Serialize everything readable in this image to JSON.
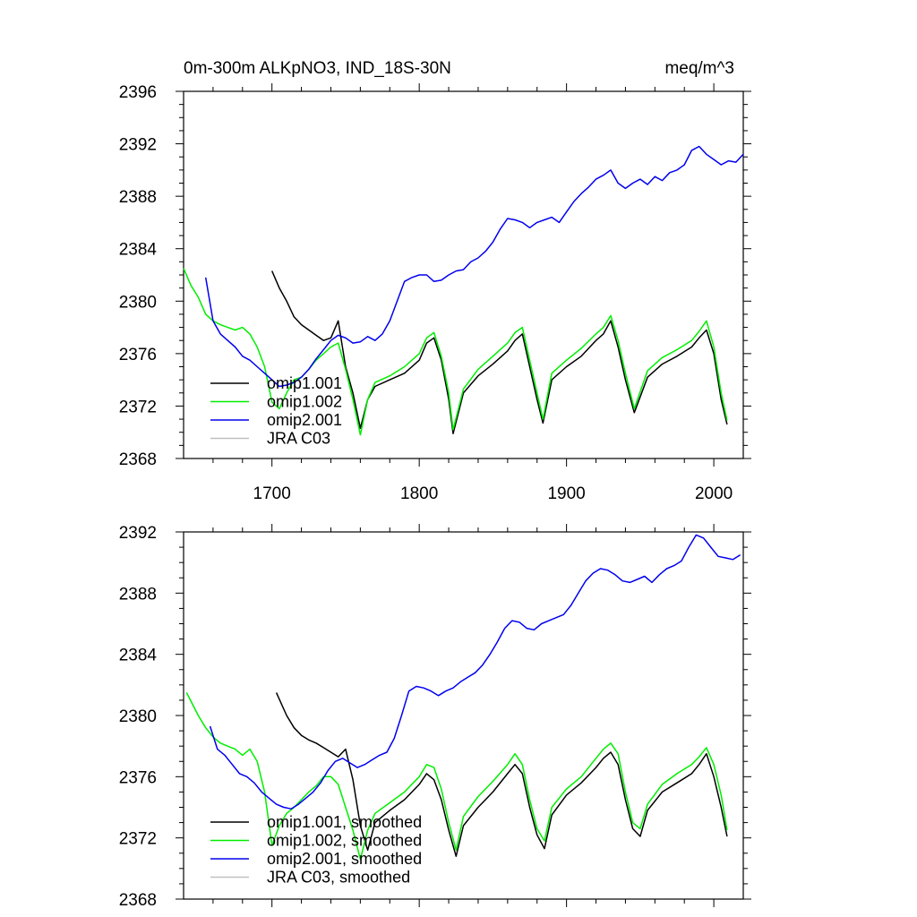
{
  "chart_data": [
    {
      "type": "line",
      "title_left": "0m-300m ALKpNO3, IND_18S-30N",
      "title_right": "meq/m^3",
      "xlim": [
        1640,
        2020
      ],
      "ylim": [
        2368,
        2396
      ],
      "x_ticks": [
        1700,
        1800,
        1900,
        2000
      ],
      "y_ticks": [
        2368,
        2372,
        2376,
        2380,
        2384,
        2388,
        2392,
        2396
      ],
      "y_tick_labels": [
        "2368",
        "2372",
        "2376",
        "2380",
        "2384",
        "2388",
        "2392",
        "2396"
      ],
      "x_tick_labels": [
        "1700",
        "1800",
        "1900",
        "2000"
      ],
      "legend": [
        "omip1.001",
        "omip1.002",
        "omip2.001",
        "JRA C03"
      ],
      "legend_position": "bottom-left",
      "series": [
        {
          "name": "omip1.001",
          "color": "#000000",
          "x": [
            1700,
            1705,
            1710,
            1715,
            1720,
            1725,
            1730,
            1735,
            1740,
            1745,
            1750,
            1755,
            1760,
            1765,
            1770,
            1780,
            1790,
            1800,
            1805,
            1810,
            1815,
            1820,
            1823,
            1830,
            1840,
            1850,
            1860,
            1865,
            1870,
            1875,
            1880,
            1884,
            1890,
            1900,
            1910,
            1920,
            1925,
            1930,
            1935,
            1940,
            1946,
            1955,
            1965,
            1975,
            1985,
            1990,
            1995,
            2000,
            2005,
            2009
          ],
          "y": [
            2382.3,
            2381.0,
            2380.0,
            2378.8,
            2378.2,
            2377.8,
            2377.4,
            2377.0,
            2377.2,
            2378.5,
            2375.0,
            2373.0,
            2370.3,
            2372.5,
            2373.5,
            2374.0,
            2374.5,
            2375.5,
            2376.8,
            2377.2,
            2375.5,
            2372.5,
            2369.9,
            2373.0,
            2374.3,
            2375.2,
            2376.2,
            2377.0,
            2377.5,
            2375.0,
            2372.5,
            2370.7,
            2374.0,
            2375.0,
            2375.8,
            2377.0,
            2377.5,
            2378.5,
            2376.5,
            2374.0,
            2371.5,
            2374.2,
            2375.2,
            2375.8,
            2376.5,
            2377.2,
            2377.8,
            2376.0,
            2372.5,
            2370.6
          ]
        },
        {
          "name": "omip1.002",
          "color": "#00ee00",
          "x": [
            1640,
            1645,
            1650,
            1655,
            1660,
            1665,
            1670,
            1675,
            1680,
            1685,
            1690,
            1695,
            1700,
            1705,
            1710,
            1715,
            1720,
            1725,
            1730,
            1735,
            1740,
            1745,
            1750,
            1755,
            1760,
            1765,
            1770,
            1780,
            1790,
            1800,
            1805,
            1810,
            1815,
            1820,
            1823,
            1830,
            1840,
            1850,
            1860,
            1865,
            1870,
            1875,
            1880,
            1884,
            1890,
            1900,
            1910,
            1920,
            1925,
            1930,
            1935,
            1940,
            1946,
            1955,
            1965,
            1975,
            1985,
            1990,
            1995,
            2000,
            2005,
            2009
          ],
          "y": [
            2382.5,
            2381.2,
            2380.3,
            2379.0,
            2378.5,
            2378.2,
            2378.0,
            2377.8,
            2378.0,
            2377.5,
            2376.5,
            2375.0,
            2372.3,
            2371.8,
            2373.0,
            2374.0,
            2374.2,
            2374.8,
            2375.5,
            2376.0,
            2376.5,
            2376.8,
            2374.8,
            2372.5,
            2369.8,
            2372.5,
            2373.8,
            2374.3,
            2375.0,
            2376.0,
            2377.2,
            2377.6,
            2375.8,
            2373.0,
            2370.2,
            2373.3,
            2374.8,
            2375.8,
            2376.8,
            2377.6,
            2378.0,
            2375.5,
            2373.0,
            2371.0,
            2374.5,
            2375.5,
            2376.4,
            2377.5,
            2378.0,
            2378.9,
            2377.0,
            2374.5,
            2371.8,
            2374.7,
            2375.7,
            2376.3,
            2377.0,
            2377.7,
            2378.5,
            2376.5,
            2373.0,
            2370.9
          ]
        },
        {
          "name": "omip2.001",
          "color": "#0000ee",
          "x": [
            1655,
            1660,
            1665,
            1670,
            1675,
            1680,
            1685,
            1690,
            1695,
            1700,
            1705,
            1710,
            1715,
            1720,
            1725,
            1730,
            1735,
            1740,
            1745,
            1750,
            1755,
            1760,
            1765,
            1770,
            1775,
            1780,
            1785,
            1790,
            1795,
            1800,
            1805,
            1810,
            1815,
            1820,
            1825,
            1830,
            1835,
            1840,
            1845,
            1850,
            1855,
            1860,
            1865,
            1870,
            1875,
            1880,
            1885,
            1890,
            1895,
            1900,
            1905,
            1910,
            1915,
            1920,
            1925,
            1930,
            1935,
            1940,
            1945,
            1950,
            1955,
            1960,
            1965,
            1970,
            1975,
            1980,
            1985,
            1990,
            1995,
            2000,
            2005,
            2010,
            2015,
            2020
          ],
          "y": [
            2381.8,
            2378.5,
            2377.5,
            2377.0,
            2376.5,
            2375.8,
            2375.5,
            2375.0,
            2374.5,
            2374.0,
            2373.5,
            2373.6,
            2373.8,
            2374.2,
            2374.8,
            2375.6,
            2376.3,
            2377.0,
            2377.4,
            2377.2,
            2376.8,
            2376.9,
            2377.3,
            2377.0,
            2377.5,
            2378.5,
            2380.0,
            2381.5,
            2381.8,
            2382.0,
            2382.0,
            2381.5,
            2381.6,
            2382.0,
            2382.3,
            2382.4,
            2383.0,
            2383.3,
            2383.8,
            2384.5,
            2385.5,
            2386.3,
            2386.2,
            2386.0,
            2385.6,
            2386.0,
            2386.2,
            2386.4,
            2386.0,
            2386.8,
            2387.6,
            2388.2,
            2388.7,
            2389.3,
            2389.6,
            2390.0,
            2389.0,
            2388.6,
            2389.0,
            2389.3,
            2388.9,
            2389.5,
            2389.2,
            2389.8,
            2390.0,
            2390.4,
            2391.5,
            2391.8,
            2391.2,
            2390.8,
            2390.4,
            2390.7,
            2390.6,
            2391.2
          ]
        },
        {
          "name": "JRA C03",
          "color": "#c0c0c0",
          "x": [],
          "y": []
        }
      ]
    },
    {
      "type": "line",
      "xlim": [
        1640,
        2020
      ],
      "ylim": [
        2368,
        2392
      ],
      "x_ticks": [
        1700,
        1800,
        1900,
        2000
      ],
      "y_ticks": [
        2368,
        2372,
        2376,
        2380,
        2384,
        2388,
        2392
      ],
      "y_tick_labels": [
        "2368",
        "2372",
        "2376",
        "2380",
        "2384",
        "2388",
        "2392"
      ],
      "legend": [
        "omip1.001, smoothed",
        "omip1.002, smoothed",
        "omip2.001, smoothed",
        "JRA C03, smoothed"
      ],
      "legend_position": "bottom-left",
      "series": [
        {
          "name": "omip1.001, smoothed",
          "color": "#000000",
          "x": [
            1703,
            1710,
            1715,
            1720,
            1725,
            1730,
            1735,
            1740,
            1745,
            1750,
            1755,
            1760,
            1765,
            1770,
            1780,
            1790,
            1800,
            1805,
            1810,
            1815,
            1820,
            1825,
            1830,
            1840,
            1850,
            1860,
            1865,
            1870,
            1875,
            1880,
            1885,
            1890,
            1900,
            1910,
            1920,
            1925,
            1930,
            1935,
            1940,
            1945,
            1950,
            1955,
            1965,
            1975,
            1985,
            1990,
            1995,
            2000,
            2005,
            2009
          ],
          "y": [
            2381.5,
            2380.0,
            2379.2,
            2378.7,
            2378.4,
            2378.2,
            2377.9,
            2377.6,
            2377.3,
            2377.8,
            2375.8,
            2372.8,
            2371.2,
            2373.0,
            2373.8,
            2374.5,
            2375.5,
            2376.2,
            2375.8,
            2374.5,
            2372.5,
            2370.8,
            2372.8,
            2374.0,
            2375.0,
            2376.2,
            2376.8,
            2376.2,
            2374.0,
            2372.2,
            2371.3,
            2373.5,
            2374.8,
            2375.6,
            2376.6,
            2377.2,
            2377.6,
            2376.8,
            2374.5,
            2372.6,
            2372.1,
            2373.8,
            2375.0,
            2375.6,
            2376.2,
            2376.8,
            2377.5,
            2376.0,
            2374.0,
            2372.1
          ]
        },
        {
          "name": "omip1.002, smoothed",
          "color": "#00ee00",
          "x": [
            1642,
            1650,
            1655,
            1660,
            1665,
            1670,
            1675,
            1680,
            1685,
            1690,
            1695,
            1700,
            1705,
            1710,
            1715,
            1720,
            1725,
            1730,
            1735,
            1740,
            1745,
            1750,
            1755,
            1760,
            1765,
            1770,
            1780,
            1790,
            1800,
            1805,
            1810,
            1815,
            1820,
            1825,
            1830,
            1840,
            1850,
            1860,
            1865,
            1870,
            1875,
            1880,
            1885,
            1890,
            1900,
            1910,
            1920,
            1925,
            1930,
            1935,
            1940,
            1945,
            1950,
            1955,
            1965,
            1975,
            1985,
            1990,
            1995,
            2000,
            2005,
            2009
          ],
          "y": [
            2381.5,
            2380.0,
            2379.2,
            2378.6,
            2378.2,
            2378.0,
            2377.8,
            2377.4,
            2377.8,
            2377.0,
            2375.0,
            2371.5,
            2372.8,
            2373.6,
            2374.0,
            2374.5,
            2375.0,
            2375.4,
            2376.0,
            2376.0,
            2375.5,
            2374.0,
            2372.5,
            2370.6,
            2372.5,
            2373.6,
            2374.3,
            2375.0,
            2376.0,
            2376.8,
            2376.6,
            2375.2,
            2373.0,
            2371.2,
            2373.4,
            2374.7,
            2375.7,
            2376.8,
            2377.5,
            2376.8,
            2374.5,
            2372.6,
            2371.8,
            2374.0,
            2375.2,
            2376.0,
            2377.2,
            2377.8,
            2378.2,
            2377.5,
            2375.0,
            2373.0,
            2372.6,
            2374.2,
            2375.5,
            2376.2,
            2376.8,
            2377.3,
            2377.9,
            2376.8,
            2374.8,
            2372.5
          ]
        },
        {
          "name": "omip2.001, smoothed",
          "color": "#0000ee",
          "x": [
            1658,
            1663,
            1668,
            1673,
            1678,
            1683,
            1688,
            1693,
            1698,
            1703,
            1708,
            1713,
            1718,
            1723,
            1728,
            1733,
            1738,
            1743,
            1748,
            1753,
            1758,
            1763,
            1768,
            1773,
            1778,
            1783,
            1788,
            1793,
            1798,
            1803,
            1808,
            1813,
            1818,
            1823,
            1828,
            1833,
            1838,
            1843,
            1848,
            1853,
            1858,
            1863,
            1868,
            1873,
            1878,
            1883,
            1888,
            1893,
            1898,
            1903,
            1908,
            1913,
            1918,
            1923,
            1928,
            1933,
            1938,
            1943,
            1948,
            1953,
            1958,
            1963,
            1968,
            1973,
            1978,
            1983,
            1988,
            1993,
            1998,
            2003,
            2008,
            2013,
            2018
          ],
          "y": [
            2379.3,
            2377.8,
            2377.4,
            2376.8,
            2376.2,
            2376.0,
            2375.6,
            2375.0,
            2374.6,
            2374.2,
            2374.0,
            2373.9,
            2374.2,
            2374.6,
            2375.0,
            2375.6,
            2376.4,
            2377.0,
            2377.2,
            2376.9,
            2376.6,
            2376.8,
            2377.1,
            2377.4,
            2377.6,
            2378.5,
            2380.0,
            2381.6,
            2381.9,
            2381.8,
            2381.6,
            2381.3,
            2381.6,
            2381.8,
            2382.2,
            2382.5,
            2382.8,
            2383.3,
            2384.0,
            2384.8,
            2385.7,
            2386.2,
            2386.1,
            2385.7,
            2385.6,
            2386.0,
            2386.2,
            2386.4,
            2386.6,
            2387.2,
            2388.0,
            2388.8,
            2389.3,
            2389.6,
            2389.5,
            2389.2,
            2388.8,
            2388.7,
            2388.9,
            2389.1,
            2388.7,
            2389.2,
            2389.6,
            2389.8,
            2390.1,
            2391.0,
            2391.8,
            2391.6,
            2391.0,
            2390.4,
            2390.3,
            2390.2,
            2390.5
          ]
        },
        {
          "name": "JRA C03, smoothed",
          "color": "#c0c0c0",
          "x": [],
          "y": []
        }
      ]
    }
  ]
}
